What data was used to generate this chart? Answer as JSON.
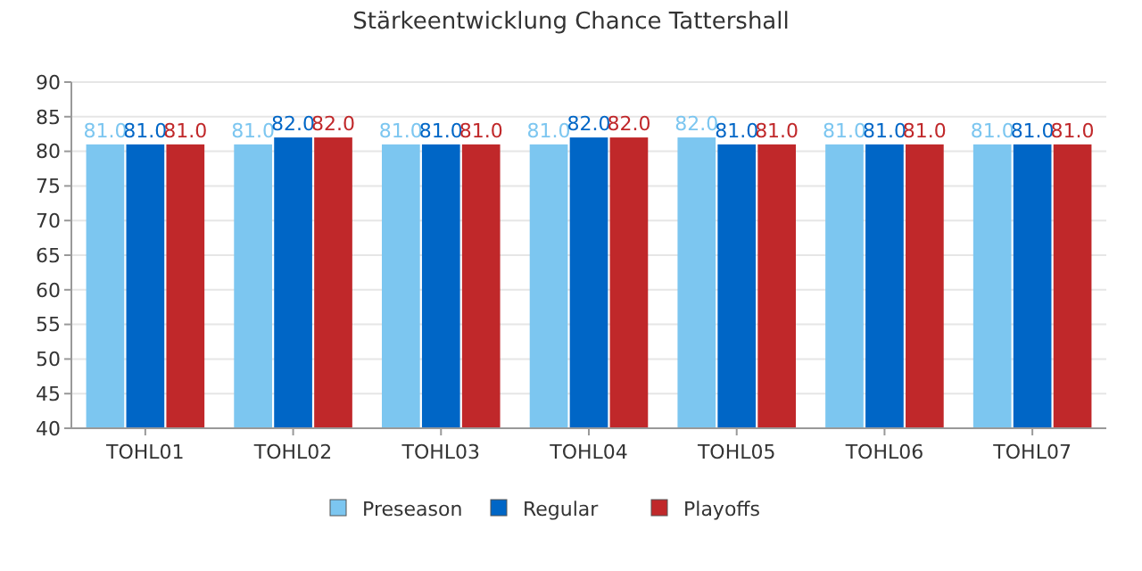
{
  "chart_data": {
    "type": "bar",
    "title": "Stärkeentwicklung Chance Tattershall",
    "categories": [
      "TOHL01",
      "TOHL02",
      "TOHL03",
      "TOHL04",
      "TOHL05",
      "TOHL06",
      "TOHL07"
    ],
    "series": [
      {
        "name": "Preseason",
        "color": "#7cc6f0",
        "values": [
          81,
          81,
          81,
          81,
          82,
          81,
          81
        ],
        "value_labels": [
          "81.0",
          "81.0",
          "81.0",
          "81.0",
          "82.0",
          "81.0",
          "81.0"
        ]
      },
      {
        "name": "Regular",
        "color": "#0066c6",
        "values": [
          81,
          82,
          81,
          82,
          81,
          81,
          81
        ],
        "value_labels": [
          "81.0",
          "82.0",
          "81.0",
          "82.0",
          "81.0",
          "81.0",
          "81.0"
        ]
      },
      {
        "name": "Playoffs",
        "color": "#c0282a",
        "values": [
          81,
          82,
          81,
          82,
          81,
          81,
          81
        ],
        "value_labels": [
          "81.0",
          "82.0",
          "81.0",
          "82.0",
          "81.0",
          "81.0",
          "81.0"
        ]
      }
    ],
    "ylim": [
      40,
      90
    ],
    "yticks": [
      40,
      45,
      50,
      55,
      60,
      65,
      70,
      75,
      80,
      85,
      90
    ],
    "grid": "y",
    "legend": "bottom"
  }
}
